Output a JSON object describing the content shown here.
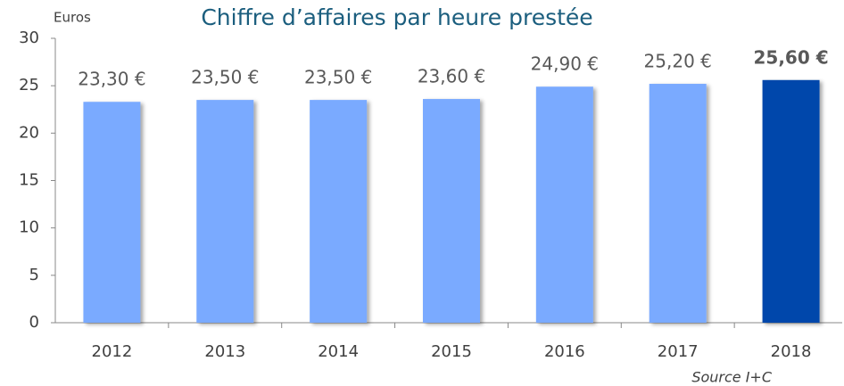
{
  "chart_data": {
    "type": "bar",
    "title": "Chiffre d’affaires par heure prestée",
    "y_label": "Euros",
    "categories": [
      "2012",
      "2013",
      "2014",
      "2015",
      "2016",
      "2017",
      "2018"
    ],
    "values": [
      23.3,
      23.5,
      23.5,
      23.6,
      24.9,
      25.2,
      25.6
    ],
    "value_labels": [
      "23,30 €",
      "23,50 €",
      "23,50 €",
      "23,60 €",
      "24,90 €",
      "25,20 €",
      "25,60 €"
    ],
    "value_label_bold": [
      false,
      false,
      false,
      false,
      false,
      false,
      true
    ],
    "colors": [
      "#7aaaff",
      "#7aaaff",
      "#7aaaff",
      "#7aaaff",
      "#7aaaff",
      "#7aaaff",
      "#0047ab"
    ],
    "ylim": [
      0,
      30
    ],
    "yticks": [
      0,
      5,
      10,
      15,
      20,
      25,
      30
    ],
    "grid": false,
    "source": "Source I+C"
  }
}
